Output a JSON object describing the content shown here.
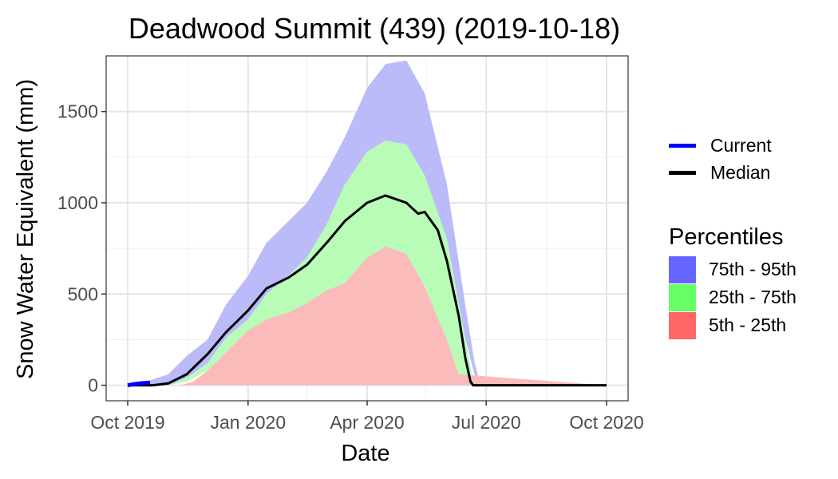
{
  "chart_data": {
    "type": "area",
    "title": "Deadwood Summit (439) (2019-10-18)",
    "xlabel": "Date",
    "ylabel": "Snow Water Equivalent (mm)",
    "xlim": [
      "2019-10-01",
      "2020-10-01"
    ],
    "ylim": [
      -85,
      1805
    ],
    "x_ticks": [
      {
        "date": "2019-10-01",
        "label": "Oct 2019"
      },
      {
        "date": "2020-01-01",
        "label": "Jan 2020"
      },
      {
        "date": "2020-04-01",
        "label": "Apr 2020"
      },
      {
        "date": "2020-07-01",
        "label": "Jul 2020"
      },
      {
        "date": "2020-10-01",
        "label": "Oct 2020"
      }
    ],
    "y_ticks": [
      0,
      500,
      1000,
      1500
    ],
    "grid": true,
    "legend_placement": "right",
    "percentile_legend_title": "Percentiles",
    "series": [
      {
        "name": "75th - 95th",
        "kind": "band",
        "color": "#6666ff",
        "fill": "#bbbbfa",
        "x": [
          "2019-10-01",
          "2019-10-15",
          "2019-11-01",
          "2019-11-15",
          "2019-12-01",
          "2019-12-15",
          "2020-01-01",
          "2020-01-15",
          "2020-02-01",
          "2020-02-15",
          "2020-03-01",
          "2020-03-15",
          "2020-04-01",
          "2020-04-15",
          "2020-05-01",
          "2020-05-15",
          "2020-06-01",
          "2020-06-15",
          "2020-06-22",
          "2020-06-26",
          "2020-07-01",
          "2020-10-01"
        ],
        "lower": [
          0,
          0,
          0,
          40,
          120,
          260,
          360,
          500,
          600,
          700,
          880,
          1100,
          1280,
          1340,
          1320,
          1150,
          800,
          260,
          60,
          0,
          0,
          0
        ],
        "upper": [
          0,
          20,
          60,
          160,
          250,
          440,
          600,
          780,
          900,
          1000,
          1170,
          1360,
          1630,
          1760,
          1780,
          1600,
          1100,
          440,
          130,
          20,
          0,
          0
        ]
      },
      {
        "name": "25th - 75th",
        "kind": "band",
        "color": "#66ff66",
        "fill": "#b8fcb8",
        "x": [
          "2019-10-01",
          "2019-10-15",
          "2019-11-01",
          "2019-11-15",
          "2019-12-01",
          "2019-12-15",
          "2020-01-01",
          "2020-01-15",
          "2020-02-01",
          "2020-02-15",
          "2020-03-01",
          "2020-03-15",
          "2020-04-01",
          "2020-04-15",
          "2020-05-01",
          "2020-05-15",
          "2020-06-01",
          "2020-06-10",
          "2020-06-15",
          "2020-06-20",
          "2020-07-01",
          "2020-10-01"
        ],
        "lower": [
          0,
          0,
          0,
          20,
          80,
          180,
          300,
          360,
          400,
          450,
          520,
          560,
          700,
          760,
          720,
          540,
          250,
          60,
          0,
          0,
          0,
          0
        ],
        "upper": [
          0,
          0,
          0,
          40,
          120,
          260,
          360,
          500,
          600,
          700,
          880,
          1100,
          1280,
          1340,
          1320,
          1150,
          800,
          450,
          260,
          60,
          0,
          0
        ]
      },
      {
        "name": "5th - 25th",
        "kind": "band",
        "color": "#ff6666",
        "fill": "#fbbbbb",
        "x": [
          "2019-10-01",
          "2019-11-01",
          "2019-11-10",
          "2019-11-20",
          "2019-12-01",
          "2019-12-15",
          "2020-01-01",
          "2020-01-15",
          "2020-02-01",
          "2020-02-15",
          "2020-03-01",
          "2020-03-15",
          "2020-04-01",
          "2020-04-15",
          "2020-05-01",
          "2020-05-15",
          "2020-06-01",
          "2020-06-10",
          "2020-10-01"
        ],
        "lower": [
          0,
          0,
          0,
          0,
          0,
          0,
          0,
          0,
          0,
          0,
          0,
          0,
          0,
          0,
          0,
          0,
          0,
          0,
          0
        ],
        "upper": [
          0,
          0,
          0,
          20,
          80,
          180,
          300,
          360,
          400,
          450,
          520,
          560,
          700,
          760,
          720,
          540,
          250,
          60,
          0
        ]
      },
      {
        "name": "Median",
        "kind": "line",
        "color": "#000000",
        "x": [
          "2019-10-01",
          "2019-10-20",
          "2019-11-01",
          "2019-11-15",
          "2019-12-01",
          "2019-12-15",
          "2020-01-01",
          "2020-01-15",
          "2020-02-01",
          "2020-02-15",
          "2020-03-01",
          "2020-03-15",
          "2020-04-01",
          "2020-04-15",
          "2020-05-01",
          "2020-05-10",
          "2020-05-15",
          "2020-05-25",
          "2020-06-01",
          "2020-06-10",
          "2020-06-15",
          "2020-06-19",
          "2020-06-21",
          "2020-10-01"
        ],
        "y": [
          0,
          0,
          10,
          60,
          170,
          290,
          410,
          530,
          590,
          660,
          780,
          900,
          1000,
          1040,
          1000,
          940,
          950,
          850,
          680,
          380,
          150,
          20,
          0,
          0
        ]
      },
      {
        "name": "Current",
        "kind": "line",
        "color": "#0000ff",
        "x": [
          "2019-10-01",
          "2019-10-05",
          "2019-10-10",
          "2019-10-14",
          "2019-10-18"
        ],
        "y": [
          0,
          5,
          10,
          12,
          15
        ]
      }
    ]
  }
}
